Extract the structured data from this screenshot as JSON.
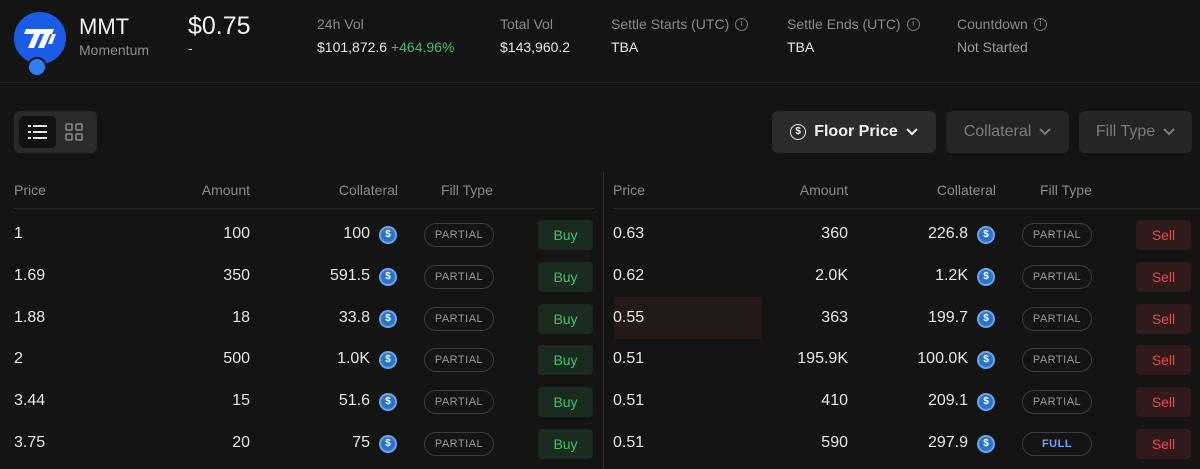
{
  "token": {
    "symbol": "MMT",
    "name": "Momentum",
    "price": "$0.75",
    "price_change": "-"
  },
  "stats": {
    "vol24h": {
      "label": "24h Vol",
      "value": "$101,872.6",
      "change": "+464.96%"
    },
    "total_vol": {
      "label": "Total Vol",
      "value": "$143,960.2"
    },
    "settle_starts": {
      "label": "Settle Starts (UTC)",
      "value": "TBA"
    },
    "settle_ends": {
      "label": "Settle Ends (UTC)",
      "value": "TBA"
    },
    "countdown": {
      "label": "Countdown",
      "value": "Not Started"
    }
  },
  "filters": {
    "floor_price": "Floor Price",
    "collateral": "Collateral",
    "fill_type": "Fill Type"
  },
  "headers": {
    "price": "Price",
    "amount": "Amount",
    "collateral": "Collateral",
    "fill_type": "Fill Type"
  },
  "buy_orders": [
    {
      "price": "1",
      "amount": "100",
      "collateral": "100",
      "fill": "PARTIAL",
      "action": "Buy"
    },
    {
      "price": "1.69",
      "amount": "350",
      "collateral": "591.5",
      "fill": "PARTIAL",
      "action": "Buy"
    },
    {
      "price": "1.88",
      "amount": "18",
      "collateral": "33.8",
      "fill": "PARTIAL",
      "action": "Buy"
    },
    {
      "price": "2",
      "amount": "500",
      "collateral": "1.0K",
      "fill": "PARTIAL",
      "action": "Buy"
    },
    {
      "price": "3.44",
      "amount": "15",
      "collateral": "51.6",
      "fill": "PARTIAL",
      "action": "Buy"
    },
    {
      "price": "3.75",
      "amount": "20",
      "collateral": "75",
      "fill": "PARTIAL",
      "action": "Buy"
    }
  ],
  "sell_orders": [
    {
      "price": "0.63",
      "amount": "360",
      "collateral": "226.8",
      "fill": "PARTIAL",
      "action": "Sell"
    },
    {
      "price": "0.62",
      "amount": "2.0K",
      "collateral": "1.2K",
      "fill": "PARTIAL",
      "action": "Sell"
    },
    {
      "price": "0.55",
      "amount": "363",
      "collateral": "199.7",
      "fill": "PARTIAL",
      "action": "Sell"
    },
    {
      "price": "0.51",
      "amount": "195.9K",
      "collateral": "100.0K",
      "fill": "PARTIAL",
      "action": "Sell"
    },
    {
      "price": "0.51",
      "amount": "410",
      "collateral": "209.1",
      "fill": "PARTIAL",
      "action": "Sell"
    },
    {
      "price": "0.51",
      "amount": "590",
      "collateral": "297.9",
      "fill": "FULL",
      "action": "Sell"
    }
  ],
  "icons": {
    "collateral": "usdc-icon",
    "info": "info-icon",
    "list_view": "list-view-icon",
    "grid_view": "grid-view-icon",
    "chevron": "chevron-down-icon",
    "dollar": "dollar-circle-icon",
    "token_badge": "sui-badge-icon"
  },
  "colors": {
    "buy": "#3cc46a",
    "sell": "#e8494f",
    "accent": "#1a5ce6",
    "full_badge": "#6aa6ff"
  }
}
